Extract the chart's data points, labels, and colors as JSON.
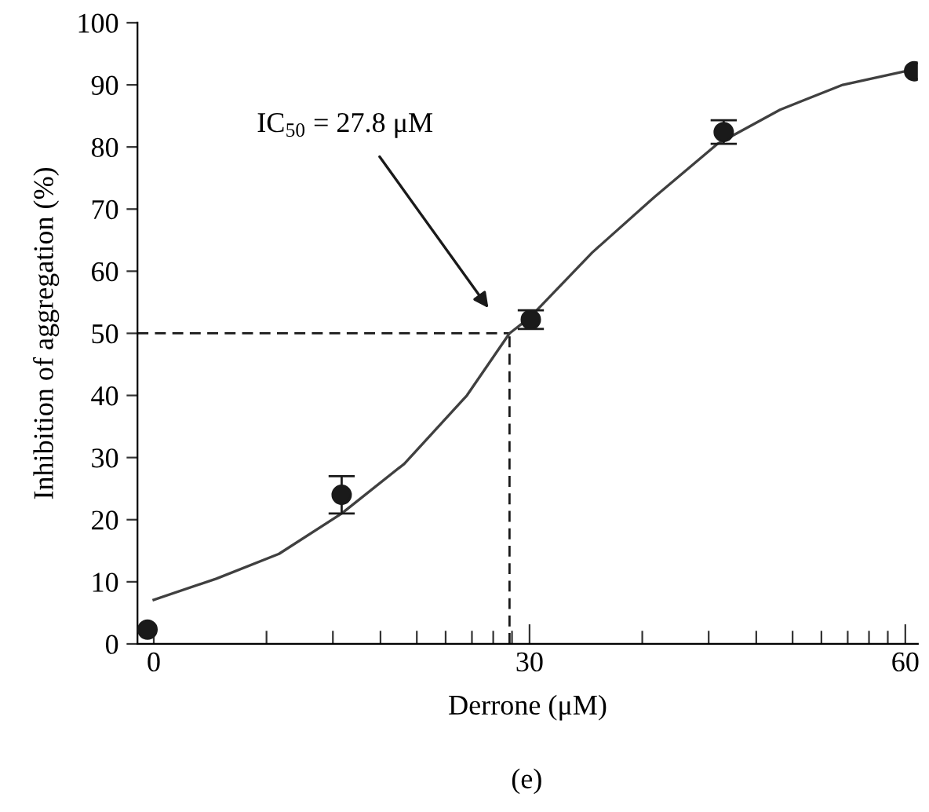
{
  "chart_data": {
    "type": "scatter",
    "xlabel": "Derrone (μM)",
    "ylabel": "Inhibition of aggregation (%)",
    "xlim": [
      -1.3,
      61
    ],
    "ylim": [
      0,
      100
    ],
    "xticks": [
      0,
      {
        "value": 9.0,
        "label": null
      },
      {
        "value": 14.3,
        "label": null
      },
      {
        "value": 18.1,
        "label": null
      },
      {
        "value": 21.0,
        "label": null
      },
      {
        "value": 23.3,
        "label": null
      },
      {
        "value": 25.4,
        "label": null
      },
      {
        "value": 27.1,
        "label": null
      },
      {
        "value": 28.6,
        "label": null
      },
      30,
      {
        "value": 39.0,
        "label": null
      },
      {
        "value": 44.3,
        "label": null
      },
      {
        "value": 48.1,
        "label": null
      },
      {
        "value": 51.0,
        "label": null
      },
      {
        "value": 53.3,
        "label": null
      },
      {
        "value": 55.4,
        "label": null
      },
      {
        "value": 57.1,
        "label": null
      },
      {
        "value": 58.6,
        "label": null
      },
      60
    ],
    "yticks": [
      0,
      10,
      20,
      30,
      40,
      50,
      60,
      70,
      80,
      90,
      100
    ],
    "grid": false,
    "series": [
      {
        "type": "line",
        "color": "#404040",
        "marker": "none",
        "line_style": "solid",
        "x": [
          0,
          5,
          10,
          15,
          20,
          25,
          28.4,
          30,
          35,
          40,
          45,
          50,
          55,
          60.7
        ],
        "values": [
          7.1,
          10.5,
          14.5,
          21,
          29,
          40,
          50,
          52.5,
          63,
          72,
          80.5,
          86,
          90,
          92.5
        ]
      },
      {
        "color": "#1a1a1a",
        "marker": "circle",
        "x": [
          -0.5,
          15,
          30.1,
          45.5,
          60.7
        ],
        "values": [
          2.3,
          24.0,
          52.2,
          82.4,
          92.2
        ],
        "errors": [
          null,
          3.0,
          1.5,
          1.9,
          null
        ]
      }
    ],
    "ref_lines": [
      {
        "axis": "y",
        "value": 50,
        "color": "#1a1a1a",
        "line_style": "dashed"
      },
      {
        "axis": "x",
        "value": 28.4,
        "color": "#1a1a1a",
        "line_style": "dashed"
      }
    ],
    "annotations": [
      "IC$_{50}$ = 27.8 μM",
      "(e)"
    ]
  }
}
